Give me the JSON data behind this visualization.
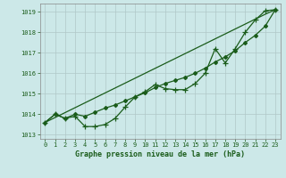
{
  "xlabel": "Graphe pression niveau de la mer (hPa)",
  "ylim": [
    1012.8,
    1019.4
  ],
  "xlim": [
    -0.5,
    23.5
  ],
  "yticks": [
    1013,
    1014,
    1015,
    1016,
    1017,
    1018,
    1019
  ],
  "xticks": [
    0,
    1,
    2,
    3,
    4,
    5,
    6,
    7,
    8,
    9,
    10,
    11,
    12,
    13,
    14,
    15,
    16,
    17,
    18,
    19,
    20,
    21,
    22,
    23
  ],
  "bg_color": "#cce8e8",
  "grid_color": "#b0c8c8",
  "line_color": "#1a5c1a",
  "line_jagged": [
    1013.6,
    1014.0,
    1013.8,
    1013.9,
    1013.4,
    1013.4,
    1013.5,
    1013.8,
    1014.35,
    1014.85,
    1015.1,
    1015.45,
    1015.25,
    1015.2,
    1015.2,
    1015.5,
    1016.0,
    1017.2,
    1016.5,
    1017.2,
    1018.0,
    1018.6,
    1019.05,
    1019.1
  ],
  "line_smooth": [
    1013.6,
    1014.0,
    1013.8,
    1014.0,
    1013.9,
    1014.1,
    1014.3,
    1014.45,
    1014.65,
    1014.85,
    1015.05,
    1015.3,
    1015.5,
    1015.65,
    1015.8,
    1016.0,
    1016.25,
    1016.55,
    1016.8,
    1017.1,
    1017.5,
    1017.85,
    1018.3,
    1019.1
  ],
  "line_straight": [
    1013.6,
    1013.84,
    1014.08,
    1014.32,
    1014.56,
    1014.8,
    1015.04,
    1015.28,
    1015.52,
    1015.76,
    1016.0,
    1016.24,
    1016.48,
    1016.72,
    1016.96,
    1017.2,
    1017.44,
    1017.68,
    1017.92,
    1018.16,
    1018.4,
    1018.64,
    1018.88,
    1019.1
  ]
}
